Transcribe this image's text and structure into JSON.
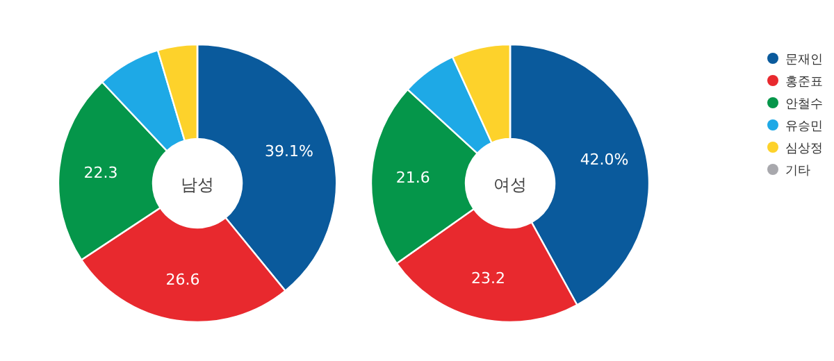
{
  "chart_data": [
    {
      "type": "donut",
      "title": "남성",
      "categories": [
        "문재인",
        "홍준표",
        "안철수",
        "유승민",
        "심상정",
        "기타"
      ],
      "values": [
        39.1,
        26.6,
        22.3,
        7.4,
        4.6,
        0
      ],
      "colors": [
        "#0a5a9c",
        "#e8292e",
        "#05964a",
        "#1ea9e6",
        "#fdd22b",
        "#a8a8ad"
      ],
      "value_labels": [
        "39.1%",
        "26.6",
        "22.3",
        null,
        null,
        null
      ],
      "legend": "right"
    },
    {
      "type": "donut",
      "title": "여성",
      "categories": [
        null,
        null,
        null,
        null,
        null,
        null
      ],
      "values": [
        42.0,
        23.2,
        21.6,
        6.4,
        6.8,
        0
      ],
      "colors": [
        "#0a5a9c",
        "#e8292e",
        "#05964a",
        "#1ea9e6",
        "#fdd22b",
        "#a8a8ad"
      ],
      "value_labels": [
        "42.0%",
        "23.2",
        "21.6",
        null,
        null,
        null
      ],
      "legend": false
    }
  ]
}
